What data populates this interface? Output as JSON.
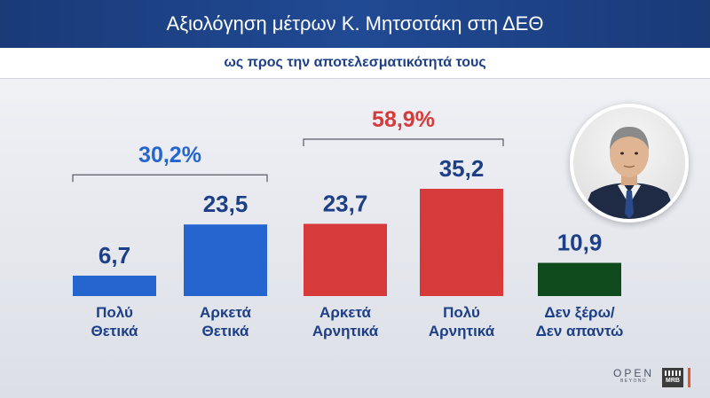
{
  "title": "Αξιολόγηση μέτρων Κ. Μητσοτάκη στη ΔΕΘ",
  "subtitle": "ως προς την αποτελεσματικότητά τους",
  "chart_data": {
    "type": "bar",
    "title": "Αξιολόγηση μέτρων Κ. Μητσοτάκη στη ΔΕΘ",
    "subtitle": "ως προς την αποτελεσματικότητά τους",
    "ylabel": "",
    "ylim": [
      0,
      35.2
    ],
    "grid": false,
    "legend": "none",
    "categories": [
      [
        "Πολύ",
        "Θετικά"
      ],
      [
        "Αρκετά",
        "Θετικά"
      ],
      [
        "Αρκετά",
        "Αρνητικά"
      ],
      [
        "Πολύ",
        "Αρνητικά"
      ],
      [
        "Δεν ξέρω/",
        "Δεν απαντώ"
      ]
    ],
    "values": [
      6.7,
      23.5,
      23.7,
      35.2,
      10.9
    ],
    "value_labels": [
      "6,7",
      "23,5",
      "23,7",
      "35,2",
      "10,9"
    ],
    "colors": [
      "#2565cf",
      "#2565cf",
      "#d63a3a",
      "#d63a3a",
      "#0e4a1c"
    ],
    "groups": [
      {
        "label": "30,2%",
        "from": 0,
        "to": 1,
        "color": "#2565cf"
      },
      {
        "label": "58,9%",
        "from": 2,
        "to": 3,
        "color": "#d63a3a"
      }
    ]
  },
  "colors": {
    "category_text": "#1d3f86",
    "value_text": "#1d3f86"
  },
  "photo": {
    "icon": "politician-portrait-icon"
  },
  "logos": {
    "open": "OPEN",
    "open_sub": "BEYOND",
    "mrb": "MRB"
  }
}
